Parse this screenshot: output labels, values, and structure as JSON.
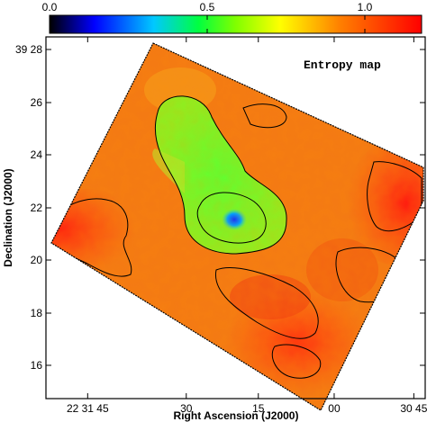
{
  "chart_data": {
    "type": "heatmap",
    "title": "Entropy map",
    "colorbar": {
      "tick_labels": [
        "0.0",
        "0.5",
        "1.0"
      ],
      "tick_values": [
        0.0,
        0.5,
        1.0
      ],
      "range": [
        0.0,
        1.18
      ],
      "colormap_stops": [
        "#000000",
        "#0000ff",
        "#00c8ff",
        "#00ff40",
        "#80ff00",
        "#ffff00",
        "#ff8000",
        "#ff0000"
      ]
    },
    "xlabel": "Right Ascension (J2000)",
    "ylabel": "Declination (J2000)",
    "x_ticks": [
      "22 31 45",
      "30",
      "15",
      "00",
      "30 45"
    ],
    "y_ticks": [
      "39 28",
      "26",
      "24",
      "22",
      "20",
      "18",
      "16"
    ],
    "map_values": {
      "background": 1.0,
      "core_peak": 0.15,
      "green_region": 0.55,
      "contour_levels": [
        0.55,
        0.75
      ]
    }
  }
}
